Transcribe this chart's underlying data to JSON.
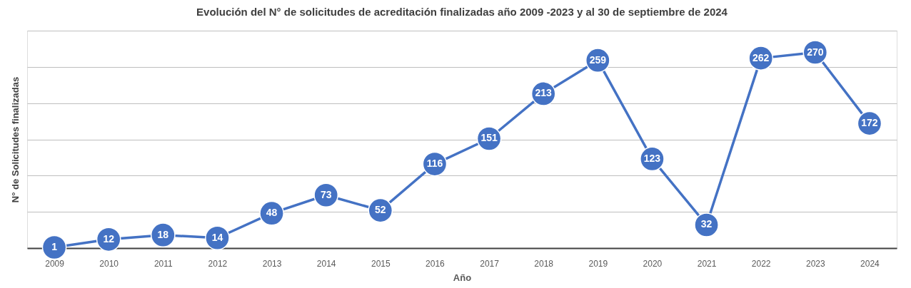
{
  "chart_data": {
    "type": "line",
    "title": "Evolución del N° de solicitudes de acreditación finalizadas  año 2009 -2023 y al 30 de septiembre de 2024",
    "xlabel": "Año",
    "ylabel": "N° de Solicitudes finalizadas",
    "categories": [
      "2009",
      "2010",
      "2011",
      "2012",
      "2013",
      "2014",
      "2015",
      "2016",
      "2017",
      "2018",
      "2019",
      "2020",
      "2021",
      "2022",
      "2023",
      "2024"
    ],
    "series": [
      {
        "color": "#4472c4",
        "values": [
          1,
          12,
          18,
          14,
          48,
          73,
          52,
          116,
          151,
          213,
          259,
          123,
          32,
          262,
          270,
          172
        ]
      }
    ],
    "ylim": [
      0,
      300
    ],
    "yticks": [
      {
        "value": 0,
        "label": null
      },
      {
        "value": 50,
        "label": null
      },
      {
        "value": 100,
        "label": null
      },
      {
        "value": 150,
        "label": null
      },
      {
        "value": 200,
        "label": null
      },
      {
        "value": 250,
        "label": null
      },
      {
        "value": 300,
        "label": null
      }
    ],
    "grid": "y",
    "tick_labels": "x",
    "data_labels": true,
    "marker": "circle",
    "line_style": "solid"
  }
}
